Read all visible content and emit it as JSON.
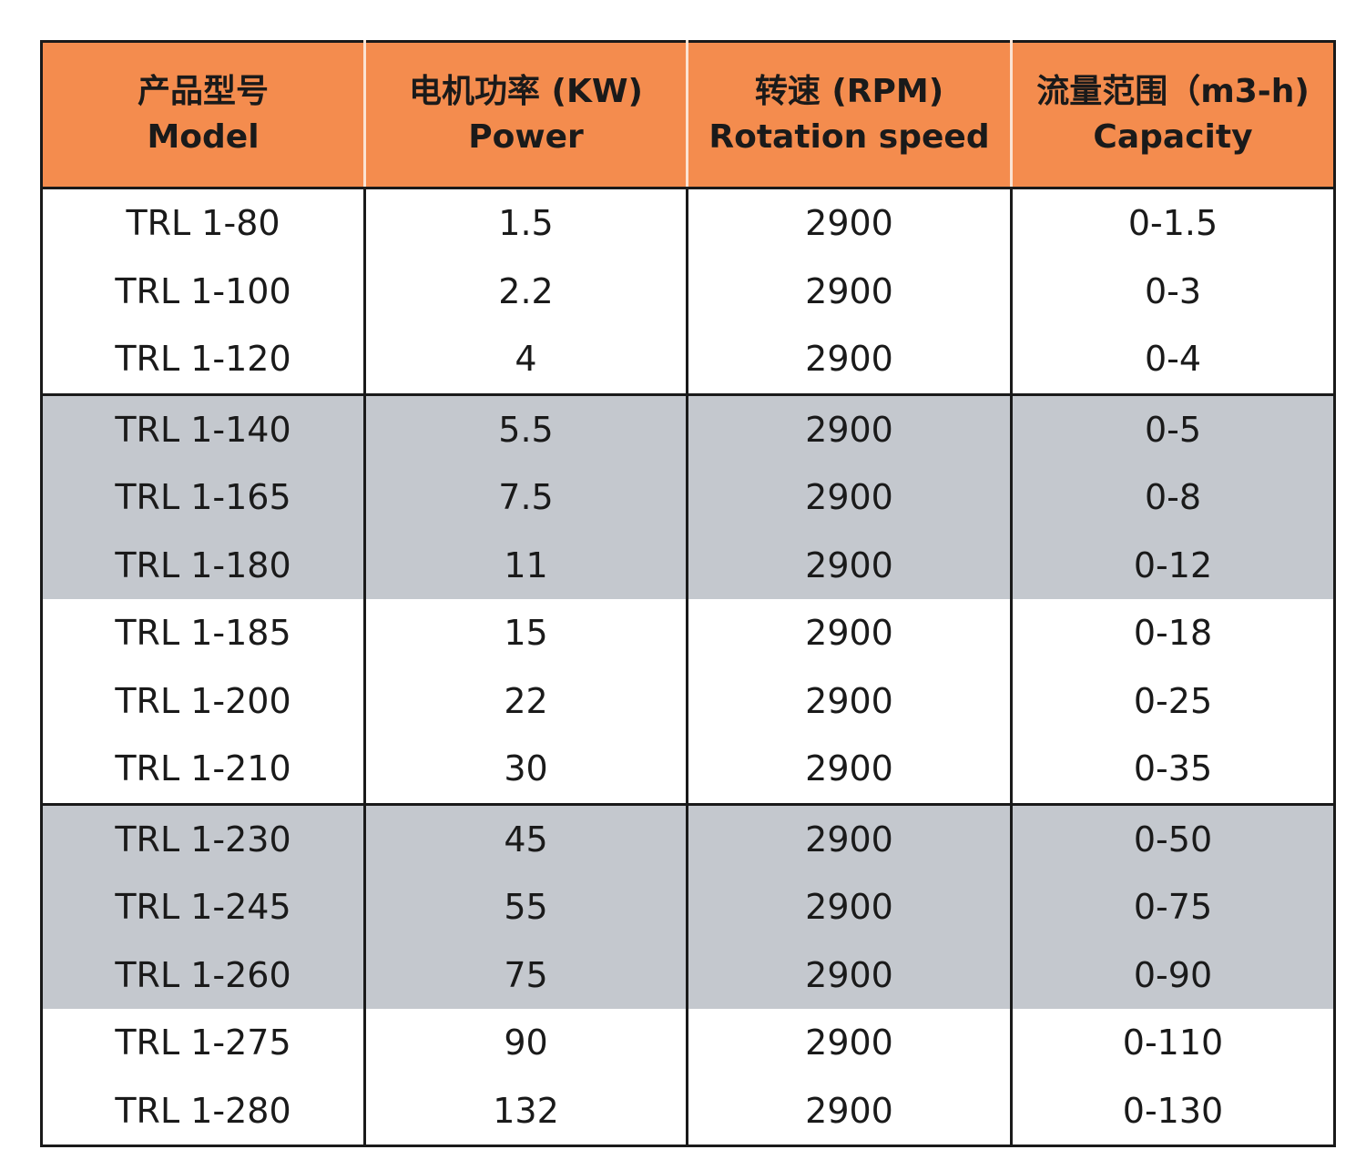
{
  "table": {
    "headers": [
      {
        "cn": "产品型号",
        "en": "Model"
      },
      {
        "cn": "电机功率 (KW)",
        "en": "Power"
      },
      {
        "cn": "转速 (RPM)",
        "en": "Rotation speed"
      },
      {
        "cn": "流量范围（m3-h)",
        "en": "Capacity"
      }
    ],
    "rows": [
      {
        "model": "TRL 1-80",
        "power": "1.5",
        "speed": "2900",
        "capacity": "0-1.5"
      },
      {
        "model": "TRL 1-100",
        "power": "2.2",
        "speed": "2900",
        "capacity": "0-3"
      },
      {
        "model": "TRL 1-120",
        "power": "4",
        "speed": "2900",
        "capacity": "0-4"
      },
      {
        "model": "TRL 1-140",
        "power": "5.5",
        "speed": "2900",
        "capacity": "0-5"
      },
      {
        "model": "TRL 1-165",
        "power": "7.5",
        "speed": "2900",
        "capacity": "0-8"
      },
      {
        "model": "TRL 1-180",
        "power": "11",
        "speed": "2900",
        "capacity": "0-12"
      },
      {
        "model": "TRL 1-185",
        "power": "15",
        "speed": "2900",
        "capacity": "0-18"
      },
      {
        "model": "TRL 1-200",
        "power": "22",
        "speed": "2900",
        "capacity": "0-25"
      },
      {
        "model": "TRL 1-210",
        "power": "30",
        "speed": "2900",
        "capacity": "0-35"
      },
      {
        "model": "TRL 1-230",
        "power": "45",
        "speed": "2900",
        "capacity": "0-50"
      },
      {
        "model": "TRL 1-245",
        "power": "55",
        "speed": "2900",
        "capacity": "0-75"
      },
      {
        "model": "TRL 1-260",
        "power": "75",
        "speed": "2900",
        "capacity": "0-90"
      },
      {
        "model": "TRL 1-275",
        "power": "90",
        "speed": "2900",
        "capacity": "0-110"
      },
      {
        "model": "TRL 1-280",
        "power": "132",
        "speed": "2900",
        "capacity": "0-130"
      }
    ]
  },
  "colors": {
    "header_bg": "#f48c4e",
    "shaded_row_bg": "#c4c8ce",
    "border": "#1a1a1a"
  }
}
